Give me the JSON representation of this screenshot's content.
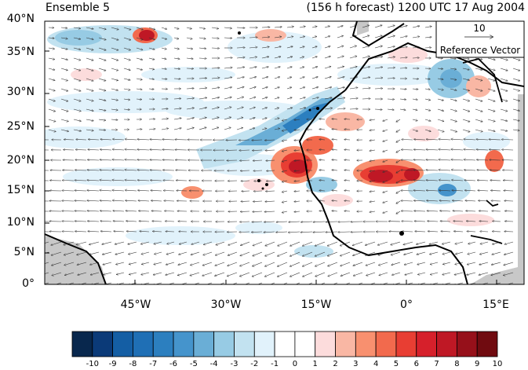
{
  "titles": {
    "left": "Ensemble 5",
    "right": "(156 h forecast) 1200 UTC 17 Aug 2004"
  },
  "reference_vector": {
    "value": "10",
    "label": "Reference Vector"
  },
  "lat_labels": [
    "40°N",
    "35°N",
    "30°N",
    "25°N",
    "20°N",
    "15°N",
    "10°N",
    "5°N",
    "0°"
  ],
  "lon_labels": [
    "45°W",
    "30°W",
    "15°W",
    "0°",
    "15°E"
  ],
  "colorbar": {
    "labels": [
      "-10",
      "-9",
      "-8",
      "-7",
      "-6",
      "-5",
      "-4",
      "-3",
      "-2",
      "-1",
      "0",
      "1",
      "2",
      "3",
      "4",
      "5",
      "6",
      "7",
      "8",
      "9",
      "10"
    ],
    "colors": [
      "#08274d",
      "#0b3a78",
      "#145ea4",
      "#1f6fb5",
      "#2c7fbf",
      "#4594cc",
      "#6aaed6",
      "#97cbe4",
      "#c2e2f0",
      "#e1f2fb",
      "#ffffff",
      "#ffffff",
      "#fcdcdc",
      "#f9b7a4",
      "#f8906f",
      "#f26a4d",
      "#e83e33",
      "#d6202b",
      "#bf1825",
      "#96101a",
      "#700b10"
    ]
  }
}
